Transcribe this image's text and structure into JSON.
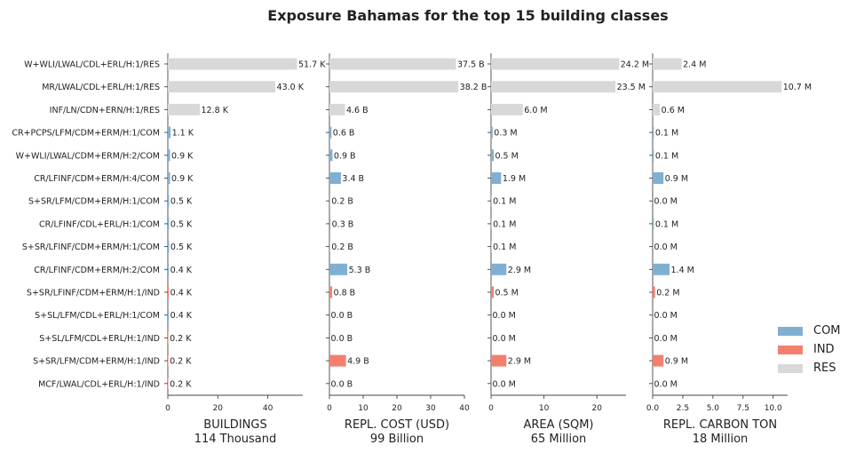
{
  "title": "Exposure Bahamas for the top 15 building classes",
  "colors": {
    "COM": "#7fb0d2",
    "IND": "#f47f6e",
    "RES": "#d8d8d8"
  },
  "legend": [
    {
      "key": "COM",
      "label": "COM"
    },
    {
      "key": "IND",
      "label": "IND"
    },
    {
      "key": "RES",
      "label": "RES"
    }
  ],
  "chart_data": {
    "type": "bar",
    "orientation": "horizontal",
    "categories": [
      "W+WLI/LWAL/CDL+ERL/H:1/RES",
      "MR/LWAL/CDL+ERL/H:1/RES",
      "INF/LN/CDN+ERN/H:1/RES",
      "CR+PCPS/LFM/CDM+ERM/H:1/COM",
      "W+WLI/LWAL/CDM+ERM/H:2/COM",
      "CR/LFINF/CDM+ERM/H:4/COM",
      "S+SR/LFM/CDM+ERM/H:1/COM",
      "CR/LFINF/CDL+ERL/H:1/COM",
      "S+SR/LFINF/CDM+ERM/H:1/COM",
      "CR/LFINF/CDM+ERM/H:2/COM",
      "S+SR/LFINF/CDM+ERM/H:1/IND",
      "S+SL/LFM/CDL+ERL/H:1/COM",
      "S+SL/LFM/CDL+ERL/H:1/IND",
      "S+SR/LFM/CDM+ERM/H:1/IND",
      "MCF/LWAL/CDL+ERL/H:1/IND"
    ],
    "occupancy": [
      "RES",
      "RES",
      "RES",
      "COM",
      "COM",
      "COM",
      "COM",
      "COM",
      "COM",
      "COM",
      "IND",
      "COM",
      "IND",
      "IND",
      "IND"
    ],
    "panels": [
      {
        "xlabel": "BUILDINGS",
        "total": "114 Thousand",
        "values": [
          51.7,
          43.0,
          12.8,
          1.1,
          0.9,
          0.9,
          0.5,
          0.5,
          0.5,
          0.4,
          0.4,
          0.4,
          0.2,
          0.2,
          0.2
        ],
        "labels": [
          "51.7 K",
          "43.0 K",
          "12.8 K",
          "1.1 K",
          "0.9 K",
          "0.9 K",
          "0.5 K",
          "0.5 K",
          "0.5 K",
          "0.4 K",
          "0.4 K",
          "0.4 K",
          "0.2 K",
          "0.2 K",
          "0.2 K"
        ],
        "xlim": [
          0,
          54
        ],
        "ticks": [
          0,
          20,
          40
        ],
        "tick_labels": [
          "0",
          "20",
          "40"
        ]
      },
      {
        "xlabel": "REPL. COST (USD)",
        "total": "99 Billion",
        "values": [
          37.5,
          38.2,
          4.6,
          0.6,
          0.9,
          3.4,
          0.2,
          0.3,
          0.2,
          5.3,
          0.8,
          0.0,
          0.0,
          4.9,
          0.0
        ],
        "labels": [
          "37.5 B",
          "38.2 B",
          "4.6 B",
          "0.6 B",
          "0.9 B",
          "3.4 B",
          "0.2 B",
          "0.3 B",
          "0.2 B",
          "5.3 B",
          "0.8 B",
          "0.0 B",
          "0.0 B",
          "4.9 B",
          "0.0 B"
        ],
        "xlim": [
          0,
          40
        ],
        "ticks": [
          0,
          10,
          20,
          30,
          40
        ],
        "tick_labels": [
          "0",
          "10",
          "20",
          "30",
          "40"
        ]
      },
      {
        "xlabel": "AREA (SQM)",
        "total": "65 Million",
        "values": [
          24.2,
          23.5,
          6.0,
          0.3,
          0.5,
          1.9,
          0.1,
          0.1,
          0.1,
          2.9,
          0.5,
          0.0,
          0.0,
          2.9,
          0.0
        ],
        "labels": [
          "24.2 M",
          "23.5 M",
          "6.0 M",
          "0.3 M",
          "0.5 M",
          "1.9 M",
          "0.1 M",
          "0.1 M",
          "0.1 M",
          "2.9 M",
          "0.5 M",
          "0.0 M",
          "0.0 M",
          "2.9 M",
          "0.0 M"
        ],
        "xlim": [
          0,
          25.5
        ],
        "ticks": [
          0,
          10,
          20
        ],
        "tick_labels": [
          "0",
          "10",
          "20"
        ]
      },
      {
        "xlabel": "REPL. CARBON TON",
        "total": "18 Million",
        "values": [
          2.4,
          10.7,
          0.6,
          0.1,
          0.1,
          0.9,
          0.0,
          0.1,
          0.0,
          1.4,
          0.2,
          0.0,
          0.0,
          0.9,
          0.0
        ],
        "labels": [
          "2.4 M",
          "10.7 M",
          "0.6 M",
          "0.1 M",
          "0.1 M",
          "0.9 M",
          "0.0 M",
          "0.1 M",
          "0.0 M",
          "1.4 M",
          "0.2 M",
          "0.0 M",
          "0.0 M",
          "0.9 M",
          "0.0 M"
        ],
        "xlim": [
          0,
          11.2
        ],
        "ticks": [
          0,
          2.5,
          5.0,
          7.5,
          10.0
        ],
        "tick_labels": [
          "0.0",
          "2.5",
          "5.0",
          "7.5",
          "10.0"
        ]
      }
    ]
  }
}
